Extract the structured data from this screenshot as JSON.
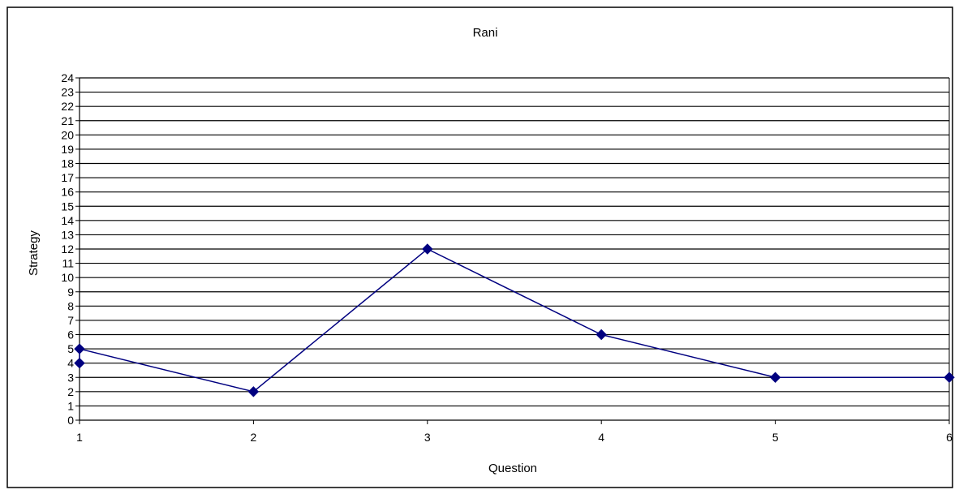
{
  "chart_data": {
    "type": "line",
    "title": "Rani",
    "xlabel": "Question",
    "ylabel": "Strategy",
    "xlim": [
      1,
      6
    ],
    "ylim": [
      0,
      24
    ],
    "x_ticks": [
      1,
      2,
      3,
      4,
      5,
      6
    ],
    "y_ticks": [
      0,
      1,
      2,
      3,
      4,
      5,
      6,
      7,
      8,
      9,
      10,
      11,
      12,
      13,
      14,
      15,
      16,
      17,
      18,
      19,
      20,
      21,
      22,
      23,
      24
    ],
    "grid": "horizontal",
    "legend": "none",
    "series": [
      {
        "color": "#000080",
        "marker": "diamond",
        "points": [
          {
            "x": 1,
            "y": 4
          },
          {
            "x": 1,
            "y": 5
          },
          {
            "x": 2,
            "y": 2
          },
          {
            "x": 3,
            "y": 12
          },
          {
            "x": 4,
            "y": 6
          },
          {
            "x": 5,
            "y": 3
          },
          {
            "x": 6,
            "y": 3
          }
        ]
      }
    ],
    "colors": {
      "line": "#000080",
      "grid": "#000000",
      "background": "#ffffff"
    }
  }
}
